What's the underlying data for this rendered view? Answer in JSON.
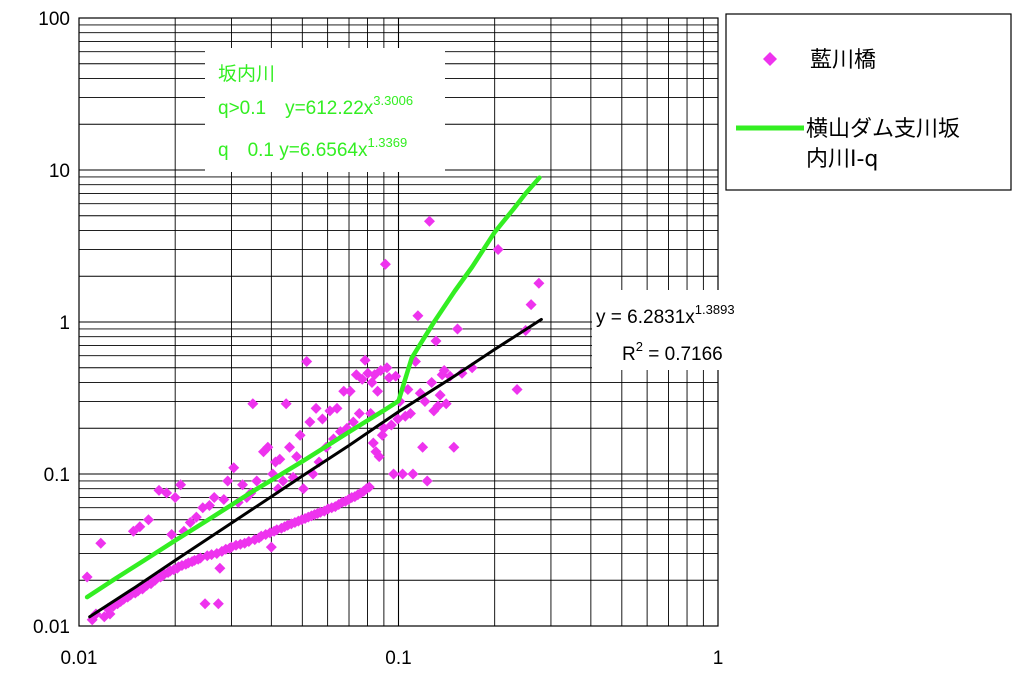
{
  "chart_data": {
    "type": "scatter",
    "x_scale": "log",
    "y_scale": "log",
    "xlim": [
      0.01,
      1
    ],
    "ylim": [
      0.01,
      100
    ],
    "x_ticks": [
      "0.01",
      "0.1",
      "1"
    ],
    "y_ticks": [
      "0.01",
      "0.1",
      "1",
      "10",
      "100"
    ],
    "grid": true,
    "legend_position": "right",
    "series": [
      {
        "name": "藍川橋",
        "kind": "scatter",
        "color": "#ee33ee",
        "points": [
          [
            0.0106,
            0.021
          ],
          [
            0.011,
            0.011
          ],
          [
            0.0113,
            0.012
          ],
          [
            0.0117,
            0.035
          ],
          [
            0.012,
            0.0115
          ],
          [
            0.0123,
            0.013
          ],
          [
            0.0125,
            0.012
          ],
          [
            0.0128,
            0.0135
          ],
          [
            0.0132,
            0.014
          ],
          [
            0.0135,
            0.0145
          ],
          [
            0.0138,
            0.015
          ],
          [
            0.0142,
            0.0155
          ],
          [
            0.0145,
            0.016
          ],
          [
            0.0148,
            0.042
          ],
          [
            0.015,
            0.0165
          ],
          [
            0.0153,
            0.017
          ],
          [
            0.0155,
            0.045
          ],
          [
            0.0158,
            0.0175
          ],
          [
            0.016,
            0.018
          ],
          [
            0.0163,
            0.0185
          ],
          [
            0.0165,
            0.05
          ],
          [
            0.0168,
            0.019
          ],
          [
            0.017,
            0.0195
          ],
          [
            0.0173,
            0.02
          ],
          [
            0.0175,
            0.0205
          ],
          [
            0.0178,
            0.078
          ],
          [
            0.018,
            0.021
          ],
          [
            0.0183,
            0.0215
          ],
          [
            0.0185,
            0.022
          ],
          [
            0.0188,
            0.075
          ],
          [
            0.019,
            0.0225
          ],
          [
            0.0193,
            0.023
          ],
          [
            0.0195,
            0.04
          ],
          [
            0.0198,
            0.0235
          ],
          [
            0.02,
            0.07
          ],
          [
            0.0203,
            0.024
          ],
          [
            0.0205,
            0.0245
          ],
          [
            0.0208,
            0.085
          ],
          [
            0.021,
            0.025
          ],
          [
            0.0213,
            0.042
          ],
          [
            0.0216,
            0.0255
          ],
          [
            0.022,
            0.026
          ],
          [
            0.0223,
            0.048
          ],
          [
            0.0226,
            0.0265
          ],
          [
            0.023,
            0.027
          ],
          [
            0.0233,
            0.052
          ],
          [
            0.0236,
            0.0275
          ],
          [
            0.024,
            0.028
          ],
          [
            0.0244,
            0.06
          ],
          [
            0.0248,
            0.014
          ],
          [
            0.0252,
            0.029
          ],
          [
            0.0256,
            0.062
          ],
          [
            0.026,
            0.0295
          ],
          [
            0.0265,
            0.07
          ],
          [
            0.027,
            0.03
          ],
          [
            0.0273,
            0.014
          ],
          [
            0.0276,
            0.024
          ],
          [
            0.028,
            0.031
          ],
          [
            0.0284,
            0.068
          ],
          [
            0.0288,
            0.032
          ],
          [
            0.0292,
            0.09
          ],
          [
            0.0296,
            0.0325
          ],
          [
            0.03,
            0.033
          ],
          [
            0.0305,
            0.11
          ],
          [
            0.031,
            0.034
          ],
          [
            0.0315,
            0.065
          ],
          [
            0.032,
            0.0345
          ],
          [
            0.0325,
            0.085
          ],
          [
            0.033,
            0.035
          ],
          [
            0.0335,
            0.07
          ],
          [
            0.034,
            0.036
          ],
          [
            0.0345,
            0.075
          ],
          [
            0.035,
            0.29
          ],
          [
            0.0355,
            0.037
          ],
          [
            0.036,
            0.09
          ],
          [
            0.0366,
            0.038
          ],
          [
            0.0372,
            0.039
          ],
          [
            0.0378,
            0.14
          ],
          [
            0.0384,
            0.04
          ],
          [
            0.039,
            0.15
          ],
          [
            0.0396,
            0.041
          ],
          [
            0.04,
            0.033
          ],
          [
            0.0404,
            0.1
          ],
          [
            0.0408,
            0.042
          ],
          [
            0.0412,
            0.12
          ],
          [
            0.0416,
            0.043
          ],
          [
            0.042,
            0.08
          ],
          [
            0.0425,
            0.125
          ],
          [
            0.043,
            0.044
          ],
          [
            0.0435,
            0.09
          ],
          [
            0.044,
            0.045
          ],
          [
            0.0445,
            0.29
          ],
          [
            0.045,
            0.046
          ],
          [
            0.0456,
            0.15
          ],
          [
            0.0462,
            0.047
          ],
          [
            0.0468,
            0.095
          ],
          [
            0.0474,
            0.048
          ],
          [
            0.048,
            0.13
          ],
          [
            0.0486,
            0.049
          ],
          [
            0.0492,
            0.18
          ],
          [
            0.0498,
            0.05
          ],
          [
            0.0504,
            0.08
          ],
          [
            0.051,
            0.051
          ],
          [
            0.0516,
            0.55
          ],
          [
            0.0522,
            0.052
          ],
          [
            0.0528,
            0.22
          ],
          [
            0.0534,
            0.053
          ],
          [
            0.054,
            0.1
          ],
          [
            0.0546,
            0.054
          ],
          [
            0.0552,
            0.27
          ],
          [
            0.0558,
            0.055
          ],
          [
            0.0564,
            0.12
          ],
          [
            0.057,
            0.056
          ],
          [
            0.0578,
            0.23
          ],
          [
            0.0586,
            0.057
          ],
          [
            0.0594,
            0.15
          ],
          [
            0.0602,
            0.059
          ],
          [
            0.061,
            0.26
          ],
          [
            0.0618,
            0.06
          ],
          [
            0.0626,
            0.17
          ],
          [
            0.0634,
            0.061
          ],
          [
            0.0642,
            0.27
          ],
          [
            0.065,
            0.063
          ],
          [
            0.0658,
            0.19
          ],
          [
            0.0666,
            0.065
          ],
          [
            0.0674,
            0.35
          ],
          [
            0.0682,
            0.066
          ],
          [
            0.069,
            0.2
          ],
          [
            0.0698,
            0.068
          ],
          [
            0.0706,
            0.35
          ],
          [
            0.0714,
            0.07
          ],
          [
            0.0722,
            0.22
          ],
          [
            0.073,
            0.071
          ],
          [
            0.0738,
            0.45
          ],
          [
            0.0746,
            0.073
          ],
          [
            0.0754,
            0.25
          ],
          [
            0.0762,
            0.075
          ],
          [
            0.077,
            0.42
          ],
          [
            0.0778,
            0.077
          ],
          [
            0.0786,
            0.56
          ],
          [
            0.0794,
            0.08
          ],
          [
            0.0802,
            0.46
          ],
          [
            0.081,
            0.082
          ],
          [
            0.0818,
            0.25
          ],
          [
            0.0826,
            0.4
          ],
          [
            0.0834,
            0.16
          ],
          [
            0.0842,
            0.45
          ],
          [
            0.085,
            0.14
          ],
          [
            0.086,
            0.35
          ],
          [
            0.087,
            0.13
          ],
          [
            0.088,
            0.48
          ],
          [
            0.089,
            0.18
          ],
          [
            0.09,
            0.2
          ],
          [
            0.091,
            2.4
          ],
          [
            0.092,
            0.5
          ],
          [
            0.0935,
            0.43
          ],
          [
            0.095,
            0.21
          ],
          [
            0.0965,
            0.1
          ],
          [
            0.098,
            0.44
          ],
          [
            0.0995,
            0.23
          ],
          [
            0.101,
            0.3
          ],
          [
            0.103,
            0.1
          ],
          [
            0.105,
            0.24
          ],
          [
            0.107,
            0.36
          ],
          [
            0.109,
            0.25
          ],
          [
            0.111,
            0.1
          ],
          [
            0.113,
            0.55
          ],
          [
            0.115,
            1.1
          ],
          [
            0.117,
            0.34
          ],
          [
            0.119,
            0.15
          ],
          [
            0.121,
            0.3
          ],
          [
            0.123,
            0.09
          ],
          [
            0.125,
            4.6
          ],
          [
            0.127,
            0.4
          ],
          [
            0.129,
            0.26
          ],
          [
            0.131,
            0.75
          ],
          [
            0.133,
            0.28
          ],
          [
            0.135,
            0.33
          ],
          [
            0.137,
            0.45
          ],
          [
            0.139,
            0.48
          ],
          [
            0.141,
            0.29
          ],
          [
            0.145,
            0.44
          ],
          [
            0.149,
            0.15
          ],
          [
            0.153,
            0.9
          ],
          [
            0.158,
            0.46
          ],
          [
            0.17,
            0.5
          ],
          [
            0.205,
            3.0
          ],
          [
            0.235,
            0.36
          ],
          [
            0.26,
            1.3
          ],
          [
            0.275,
            1.8
          ],
          [
            0.25,
            0.88
          ]
        ]
      },
      {
        "name": "横山ダム支川坂内川I-q",
        "kind": "line",
        "color": "#33ee22",
        "points": [
          [
            0.0106,
            0.0155
          ],
          [
            0.013,
            0.0205
          ],
          [
            0.016,
            0.027
          ],
          [
            0.02,
            0.0365
          ],
          [
            0.025,
            0.049
          ],
          [
            0.03,
            0.0625
          ],
          [
            0.035,
            0.077
          ],
          [
            0.04,
            0.091
          ],
          [
            0.05,
            0.121
          ],
          [
            0.06,
            0.154
          ],
          [
            0.07,
            0.189
          ],
          [
            0.08,
            0.225
          ],
          [
            0.09,
            0.262
          ],
          [
            0.1,
            0.302
          ],
          [
            0.11,
            0.58
          ],
          [
            0.12,
            0.78
          ],
          [
            0.13,
            1.02
          ],
          [
            0.15,
            1.6
          ],
          [
            0.17,
            2.3
          ],
          [
            0.2,
            3.9
          ],
          [
            0.23,
            5.6
          ],
          [
            0.25,
            7.0
          ],
          [
            0.276,
            8.9
          ]
        ]
      },
      {
        "kind": "line",
        "color": "#000000",
        "points": [
          [
            0.0108,
            0.0115
          ],
          [
            0.015,
            0.018
          ],
          [
            0.02,
            0.027
          ],
          [
            0.03,
            0.0475
          ],
          [
            0.04,
            0.071
          ],
          [
            0.05,
            0.097
          ],
          [
            0.07,
            0.154
          ],
          [
            0.1,
            0.257
          ],
          [
            0.15,
            0.442
          ],
          [
            0.2,
            0.66
          ],
          [
            0.28,
            1.04
          ]
        ]
      }
    ],
    "annotations": [
      {
        "id": "green-box-title",
        "text": "坂内川",
        "color": "#33ee22"
      },
      {
        "id": "green-eq1-prefix",
        "text": "q>0.1　y=612.22x",
        "sup": "3.3006",
        "color": "#33ee22"
      },
      {
        "id": "green-eq2-prefix",
        "text": "q　0.1  y=6.6564x",
        "sup": "1.3369",
        "color": "#33ee22"
      },
      {
        "id": "black-eq",
        "text": "y = 6.2831x",
        "sup": "1.3893",
        "color": "#000000"
      },
      {
        "id": "black-r2",
        "text": "R",
        "sup": "2",
        "suffix": " = 0.7166",
        "color": "#000000"
      }
    ],
    "legend": {
      "items": [
        {
          "label_lines": [
            "藍川橋"
          ],
          "marker": "diamond",
          "color": "#ee33ee"
        },
        {
          "label_lines": [
            "横山ダム支川坂",
            "内川I-q"
          ],
          "marker": "line",
          "color": "#33ee22"
        }
      ]
    }
  }
}
